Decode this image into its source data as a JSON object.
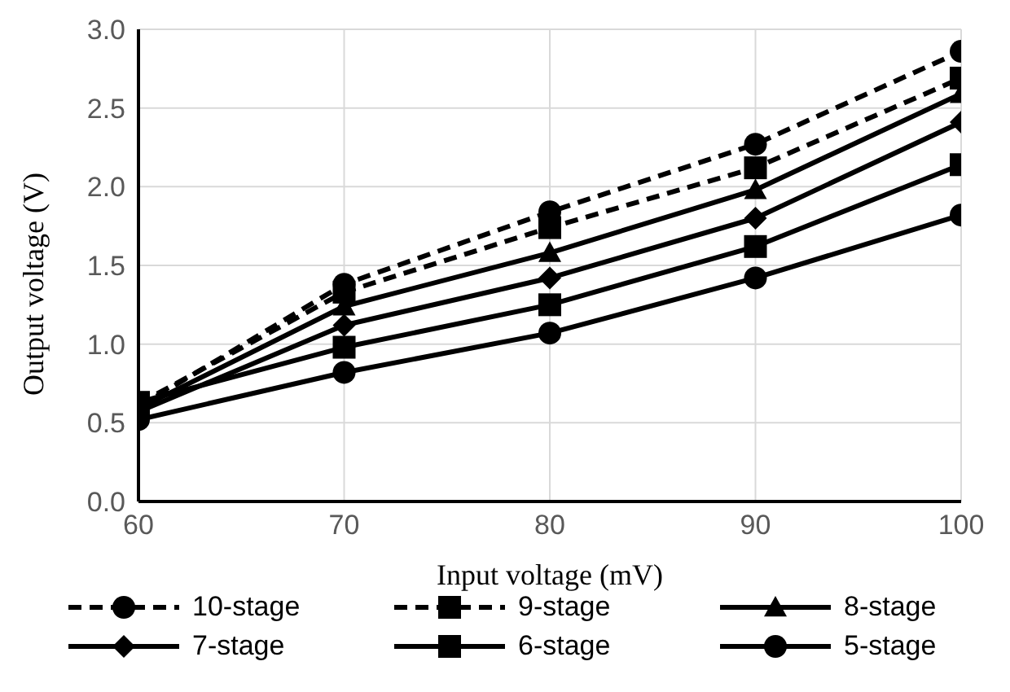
{
  "chart_data": {
    "type": "line",
    "xlabel": "Input voltage (mV)",
    "ylabel": "Output voltage (V)",
    "x": [
      60,
      70,
      80,
      90,
      100
    ],
    "xlim": [
      60,
      100
    ],
    "xticks": [
      60,
      70,
      80,
      90,
      100
    ],
    "ylim": [
      0,
      3
    ],
    "yticks": [
      {
        "value": 0,
        "label": "0.0"
      },
      {
        "value": 0.5,
        "label": "0.5"
      },
      {
        "value": 1,
        "label": "1.0"
      },
      {
        "value": 1.5,
        "label": "1.5"
      },
      {
        "value": 2,
        "label": "2.0"
      },
      {
        "value": 2.5,
        "label": "2.5"
      },
      {
        "value": 3,
        "label": "3.0"
      }
    ],
    "grid": true,
    "legend": "bottom",
    "series": [
      {
        "name": "10-stage",
        "color": "#000000",
        "marker": "circle",
        "line_style": "dashed",
        "values": [
          0.6,
          1.38,
          1.84,
          2.27,
          2.86
        ]
      },
      {
        "name": "9-stage",
        "color": "#000000",
        "marker": "square",
        "line_style": "dashed",
        "values": [
          0.62,
          1.33,
          1.74,
          2.12,
          2.69
        ]
      },
      {
        "name": "8-stage",
        "color": "#000000",
        "marker": "triangle",
        "line_style": "solid",
        "values": [
          0.59,
          1.24,
          1.58,
          1.98,
          2.59
        ]
      },
      {
        "name": "7-stage",
        "color": "#000000",
        "marker": "diamond",
        "line_style": "solid",
        "values": [
          0.57,
          1.12,
          1.42,
          1.8,
          2.41
        ]
      },
      {
        "name": "6-stage",
        "color": "#000000",
        "marker": "square",
        "line_style": "solid",
        "values": [
          0.63,
          0.98,
          1.25,
          1.62,
          2.14
        ]
      },
      {
        "name": "5-stage",
        "color": "#000000",
        "marker": "circle",
        "line_style": "solid",
        "values": [
          0.52,
          0.82,
          1.07,
          1.42,
          1.82
        ]
      }
    ]
  }
}
